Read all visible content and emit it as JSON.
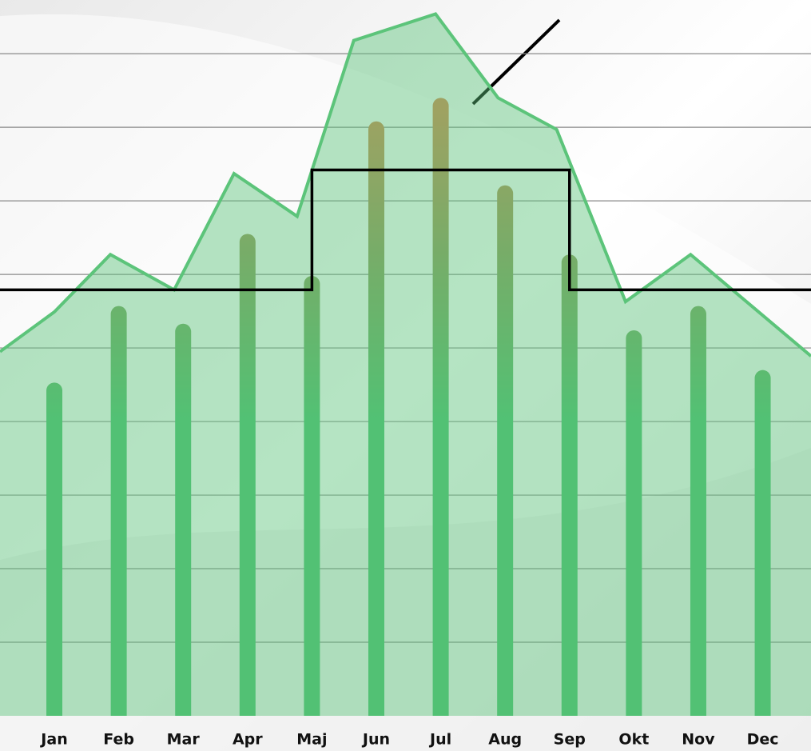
{
  "chart_data": {
    "type": "bar",
    "categories": [
      "Jan",
      "Feb",
      "Mar",
      "Apr",
      "Maj",
      "Jun",
      "Jul",
      "Aug",
      "Sep",
      "Okt",
      "Nov",
      "Dec"
    ],
    "values": [
      4.53,
      5.57,
      5.33,
      6.55,
      5.98,
      8.08,
      8.4,
      7.21,
      6.27,
      5.24,
      5.57,
      4.7
    ],
    "bar_colors": [
      "#4cbf6f",
      "#8f9a5a",
      "#d8864e"
    ],
    "ylim": [
      0,
      9.73
    ],
    "yticks": [
      1,
      2,
      3,
      4,
      5,
      6,
      7,
      8,
      9
    ],
    "grid": true,
    "xlim": [
      -0.844,
      11.75
    ],
    "lines": [
      {
        "type": "area",
        "color": "#5cc47a",
        "x": [
          -0.844,
          0,
          0.87,
          1.86,
          2.79,
          3.77,
          4.65,
          5.92,
          6.89,
          7.8,
          8.87,
          9.88,
          11.75
        ],
        "values": [
          4.95,
          5.49,
          6.27,
          5.79,
          7.37,
          6.79,
          9.18,
          9.54,
          8.4,
          7.97,
          5.63,
          6.27,
          4.89
        ]
      },
      {
        "type": "step",
        "color": "#000000",
        "x": [
          -0.844,
          4,
          8,
          11.75
        ],
        "values": [
          5.79,
          7.42,
          5.79,
          5.79
        ]
      }
    ]
  }
}
